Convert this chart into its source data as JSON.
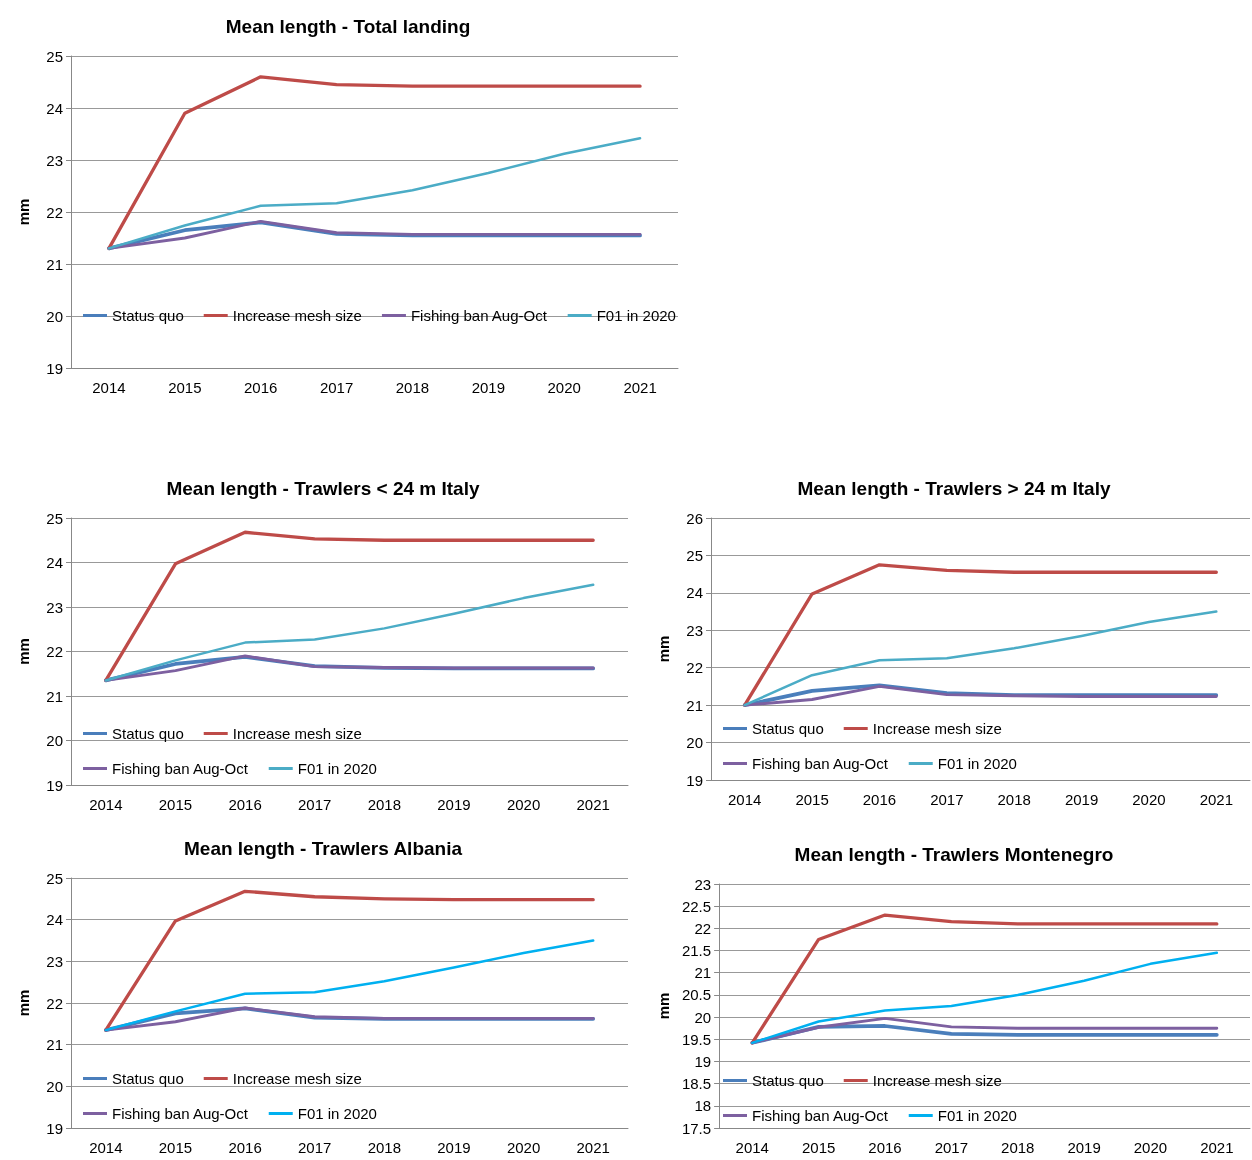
{
  "chart_data": [
    {
      "type": "line",
      "title": "Mean length - Total landing",
      "ylabel": "mm",
      "categories": [
        "2014",
        "2015",
        "2016",
        "2017",
        "2018",
        "2019",
        "2020",
        "2021"
      ],
      "ylim": [
        19,
        25
      ],
      "yticks": [
        19,
        20,
        21,
        22,
        23,
        24,
        25
      ],
      "grid": "y",
      "legend": "bottom",
      "marker": "none",
      "line_style": "solid",
      "series": [
        {
          "name": "Status quo",
          "color": "#4a7ebb",
          "values": [
            21.3,
            21.65,
            21.8,
            21.58,
            21.55,
            21.55,
            21.55,
            21.55
          ]
        },
        {
          "name": "Increase mesh size",
          "color": "#be4b48",
          "values": [
            21.3,
            23.9,
            24.6,
            24.45,
            24.42,
            24.42,
            24.42,
            24.42
          ]
        },
        {
          "name": "Fishing ban Aug-Oct",
          "color": "#7d60a0",
          "values": [
            21.3,
            21.5,
            21.82,
            21.6,
            21.57,
            21.57,
            21.57,
            21.57
          ]
        },
        {
          "name": "F01 in 2020",
          "color": "#4bacc6",
          "values": [
            21.3,
            21.74,
            22.12,
            22.17,
            22.42,
            22.75,
            23.12,
            23.42
          ]
        }
      ]
    },
    {
      "type": "line",
      "title": "Mean length - Trawlers < 24 m Italy",
      "ylabel": "mm",
      "categories": [
        "2014",
        "2015",
        "2016",
        "2017",
        "2018",
        "2019",
        "2020",
        "2021"
      ],
      "ylim": [
        19,
        25
      ],
      "yticks": [
        19,
        20,
        21,
        22,
        23,
        24,
        25
      ],
      "grid": "y",
      "legend": "bottom",
      "marker": "none",
      "line_style": "solid",
      "series": [
        {
          "name": "Status quo",
          "color": "#4a7ebb",
          "values": [
            21.35,
            21.72,
            21.88,
            21.67,
            21.63,
            21.62,
            21.62,
            21.62
          ]
        },
        {
          "name": "Increase mesh size",
          "color": "#be4b48",
          "values": [
            21.35,
            23.97,
            24.68,
            24.53,
            24.5,
            24.5,
            24.5,
            24.5
          ]
        },
        {
          "name": "Fishing ban Aug-Oct",
          "color": "#7d60a0",
          "values": [
            21.35,
            21.57,
            21.9,
            21.66,
            21.64,
            21.63,
            21.63,
            21.63
          ]
        },
        {
          "name": "F01 in 2020",
          "color": "#4bacc6",
          "values": [
            21.35,
            21.8,
            22.2,
            22.27,
            22.52,
            22.85,
            23.2,
            23.5
          ]
        }
      ]
    },
    {
      "type": "line",
      "title": "Mean length - Trawlers > 24 m Italy",
      "ylabel": "mm",
      "categories": [
        "2014",
        "2015",
        "2016",
        "2017",
        "2018",
        "2019",
        "2020",
        "2021"
      ],
      "ylim": [
        19,
        26
      ],
      "yticks": [
        19,
        20,
        21,
        22,
        23,
        24,
        25,
        26
      ],
      "grid": "y",
      "legend": "bottom",
      "marker": "none",
      "line_style": "solid",
      "series": [
        {
          "name": "Status quo",
          "color": "#4a7ebb",
          "values": [
            21.0,
            21.38,
            21.53,
            21.32,
            21.27,
            21.27,
            21.27,
            21.27
          ]
        },
        {
          "name": "Increase mesh size",
          "color": "#be4b48",
          "values": [
            21.0,
            23.97,
            24.75,
            24.6,
            24.55,
            24.55,
            24.55,
            24.55
          ]
        },
        {
          "name": "Fishing ban Aug-Oct",
          "color": "#7d60a0",
          "values": [
            21.0,
            21.15,
            21.5,
            21.28,
            21.25,
            21.23,
            21.23,
            21.23
          ]
        },
        {
          "name": "F01 in 2020",
          "color": "#4bacc6",
          "values": [
            21.0,
            21.8,
            22.2,
            22.25,
            22.52,
            22.85,
            23.22,
            23.5
          ]
        }
      ]
    },
    {
      "type": "line",
      "title": "Mean length - Trawlers Albania",
      "ylabel": "mm",
      "categories": [
        "2014",
        "2015",
        "2016",
        "2017",
        "2018",
        "2019",
        "2020",
        "2021"
      ],
      "ylim": [
        19,
        25
      ],
      "yticks": [
        19,
        20,
        21,
        22,
        23,
        24,
        25
      ],
      "grid": "y",
      "legend": "bottom",
      "marker": "none",
      "line_style": "solid",
      "series": [
        {
          "name": "Status quo",
          "color": "#4a7ebb",
          "values": [
            21.35,
            21.75,
            21.87,
            21.65,
            21.62,
            21.62,
            21.62,
            21.62
          ]
        },
        {
          "name": "Increase mesh size",
          "color": "#be4b48",
          "values": [
            21.35,
            23.97,
            24.68,
            24.55,
            24.5,
            24.48,
            24.48,
            24.48
          ]
        },
        {
          "name": "Fishing ban Aug-Oct",
          "color": "#7d60a0",
          "values": [
            21.35,
            21.55,
            21.88,
            21.67,
            21.63,
            21.63,
            21.63,
            21.63
          ]
        },
        {
          "name": "F01 in 2020",
          "color": "#00b0f0",
          "values": [
            21.35,
            21.8,
            22.22,
            22.26,
            22.52,
            22.85,
            23.2,
            23.5
          ]
        }
      ]
    },
    {
      "type": "line",
      "title": "Mean length - Trawlers Montenegro",
      "ylabel": "mm",
      "categories": [
        "2014",
        "2015",
        "2016",
        "2017",
        "2018",
        "2019",
        "2020",
        "2021"
      ],
      "ylim": [
        17.5,
        23
      ],
      "yticks": [
        17.5,
        18,
        18.5,
        19,
        19.5,
        20,
        20.5,
        21,
        21.5,
        22,
        22.5,
        23
      ],
      "grid": "y",
      "legend": "bottom",
      "marker": "none",
      "line_style": "solid",
      "series": [
        {
          "name": "Status quo",
          "color": "#4a7ebb",
          "values": [
            19.42,
            19.78,
            19.8,
            19.62,
            19.6,
            19.6,
            19.6,
            19.6
          ]
        },
        {
          "name": "Increase mesh size",
          "color": "#be4b48",
          "values": [
            19.42,
            21.75,
            22.3,
            22.15,
            22.1,
            22.1,
            22.1,
            22.1
          ]
        },
        {
          "name": "Fishing ban Aug-Oct",
          "color": "#7d60a0",
          "values": [
            19.42,
            19.77,
            19.97,
            19.78,
            19.75,
            19.75,
            19.75,
            19.75
          ]
        },
        {
          "name": "F01 in 2020",
          "color": "#00b0f0",
          "values": [
            19.42,
            19.9,
            20.15,
            20.25,
            20.5,
            20.82,
            21.2,
            21.45
          ]
        }
      ]
    }
  ]
}
